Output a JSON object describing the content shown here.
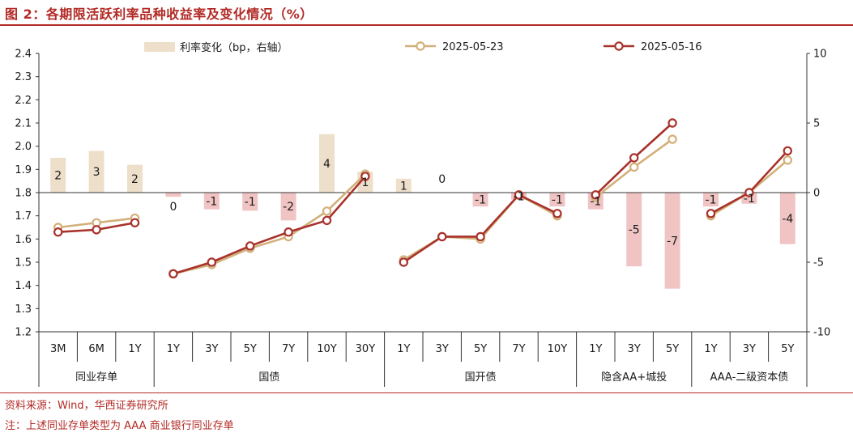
{
  "title": "图 2：各期限活跃利率品种收益率及变化情况（%）",
  "source": "资料来源：Wind，华西证券研究所",
  "note": "注：上述同业存单类型为 AAA 商业银行同业存单",
  "colors": {
    "accent": "#b22a25",
    "series_0523": "#d2b07a",
    "series_0516": "#a8322c",
    "bar_positive": "#eedfcb",
    "bar_negative": "#f1c4c4"
  },
  "chart_data": {
    "type": "bar+line",
    "categories": [
      "3M",
      "6M",
      "1Y",
      "1Y",
      "3Y",
      "5Y",
      "7Y",
      "10Y",
      "30Y",
      "1Y",
      "3Y",
      "5Y",
      "7Y",
      "10Y",
      "1Y",
      "3Y",
      "5Y",
      "1Y",
      "3Y",
      "5Y"
    ],
    "groups": [
      {
        "name": "同业存单",
        "start": 0,
        "end": 2
      },
      {
        "name": "国债",
        "start": 3,
        "end": 8
      },
      {
        "name": "国开债",
        "start": 9,
        "end": 13
      },
      {
        "name": "隐含AA+城投",
        "start": 14,
        "end": 16
      },
      {
        "name": "AAA-二级资本债",
        "start": 17,
        "end": 19
      }
    ],
    "y_left": {
      "min": 1.2,
      "max": 2.4,
      "step": 0.1
    },
    "y_right": {
      "min": -10,
      "max": 10,
      "step": 5
    },
    "grid": false,
    "legend_position": "top",
    "bars": {
      "name": "利率变化（bp，右轴）",
      "axis": "right",
      "values": [
        2.5,
        3,
        2,
        -0.3,
        -1.2,
        -1.3,
        -2,
        4.2,
        1.5,
        1,
        0,
        -1,
        -0.5,
        -1,
        -1.2,
        -5.3,
        -6.9,
        -1,
        -0.8,
        -3.7
      ],
      "labels": [
        "2",
        "3",
        "2",
        "0",
        "-1",
        "-1",
        "-2",
        "4",
        "1",
        "1",
        "0",
        "-1",
        "-1",
        "-1",
        "-1",
        "-5",
        "-7",
        "-1",
        "-1",
        "-4"
      ]
    },
    "series": [
      {
        "name": "2025-05-23",
        "axis": "left",
        "segments": [
          [
            1.65,
            1.67,
            1.69
          ],
          [
            1.45,
            1.49,
            1.56,
            1.61,
            1.72,
            1.88
          ],
          [
            1.51,
            1.61,
            1.6,
            1.79,
            1.7
          ],
          [
            1.78,
            1.91,
            2.03
          ],
          [
            1.7,
            1.8,
            1.94
          ]
        ]
      },
      {
        "name": "2025-05-16",
        "axis": "left",
        "segments": [
          [
            1.63,
            1.64,
            1.67
          ],
          [
            1.45,
            1.5,
            1.57,
            1.63,
            1.68,
            1.87
          ],
          [
            1.5,
            1.61,
            1.61,
            1.79,
            1.71
          ],
          [
            1.79,
            1.95,
            2.1
          ],
          [
            1.71,
            1.8,
            1.98
          ]
        ]
      }
    ]
  }
}
